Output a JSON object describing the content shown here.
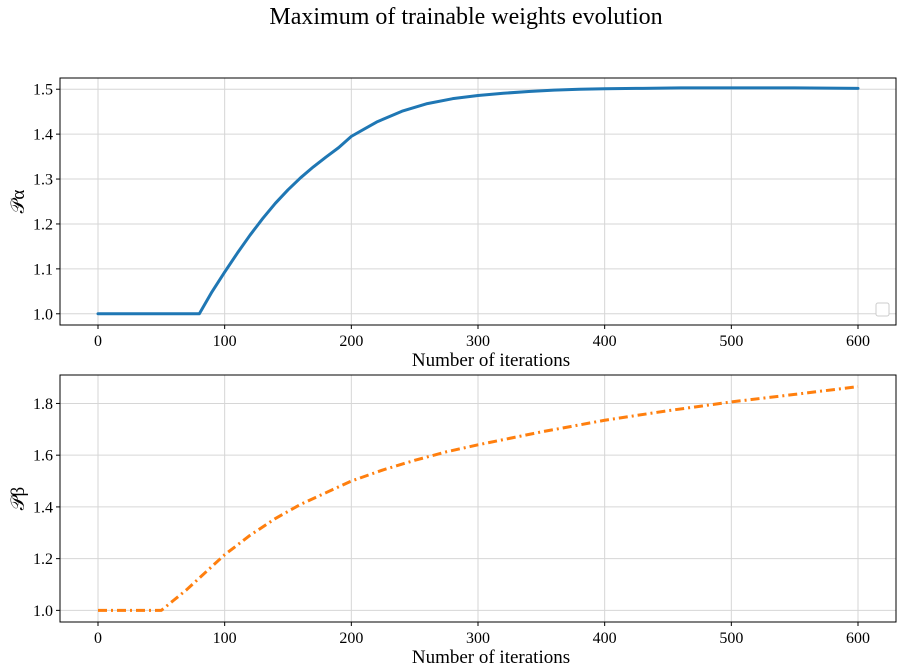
{
  "figure": {
    "title": "Maximum of trainable weights evolution"
  },
  "chart_data": [
    {
      "type": "line",
      "title": "",
      "xlabel": "Number of iterations",
      "ylabel": "𝒫α",
      "xlim": [
        -30,
        630
      ],
      "ylim": [
        0.975,
        1.525
      ],
      "xticks": [
        0,
        100,
        200,
        300,
        400,
        500,
        600
      ],
      "yticks": [
        1.0,
        1.1,
        1.2,
        1.3,
        1.4,
        1.5
      ],
      "ytick_labels": [
        "1.0",
        "1.1",
        "1.2",
        "1.3",
        "1.4",
        "1.5"
      ],
      "grid": true,
      "legend": "lower right (empty)",
      "series": [
        {
          "color": "#1f77b4",
          "linestyle": "solid",
          "x": [
            0,
            80,
            90,
            100,
            110,
            120,
            130,
            140,
            150,
            160,
            170,
            180,
            190,
            200,
            220,
            240,
            260,
            280,
            300,
            320,
            340,
            360,
            380,
            400,
            430,
            460,
            500,
            550,
            600
          ],
          "y": [
            1.0,
            1.0,
            1.049,
            1.093,
            1.135,
            1.175,
            1.212,
            1.246,
            1.276,
            1.303,
            1.327,
            1.349,
            1.37,
            1.395,
            1.427,
            1.451,
            1.468,
            1.479,
            1.486,
            1.491,
            1.495,
            1.498,
            1.5,
            1.501,
            1.502,
            1.503,
            1.503,
            1.503,
            1.502
          ]
        }
      ]
    },
    {
      "type": "line",
      "title": "",
      "xlabel": "Number of iterations",
      "ylabel": "𝒫β",
      "xlim": [
        -30,
        630
      ],
      "ylim": [
        0.955,
        1.91
      ],
      "xticks": [
        0,
        100,
        200,
        300,
        400,
        500,
        600
      ],
      "yticks": [
        1.0,
        1.2,
        1.4,
        1.6,
        1.8
      ],
      "ytick_labels": [
        "1.0",
        "1.2",
        "1.4",
        "1.6",
        "1.8"
      ],
      "grid": true,
      "series": [
        {
          "color": "#ff7f0e",
          "linestyle": "dashdot",
          "x": [
            0,
            50,
            60,
            70,
            80,
            90,
            100,
            120,
            140,
            160,
            180,
            200,
            225,
            250,
            275,
            300,
            350,
            400,
            450,
            500,
            550,
            600
          ],
          "y": [
            1.0,
            1.0,
            1.04,
            1.08,
            1.125,
            1.17,
            1.215,
            1.29,
            1.355,
            1.41,
            1.455,
            1.5,
            1.543,
            1.58,
            1.613,
            1.64,
            1.69,
            1.735,
            1.772,
            1.806,
            1.835,
            1.865
          ]
        }
      ]
    }
  ]
}
